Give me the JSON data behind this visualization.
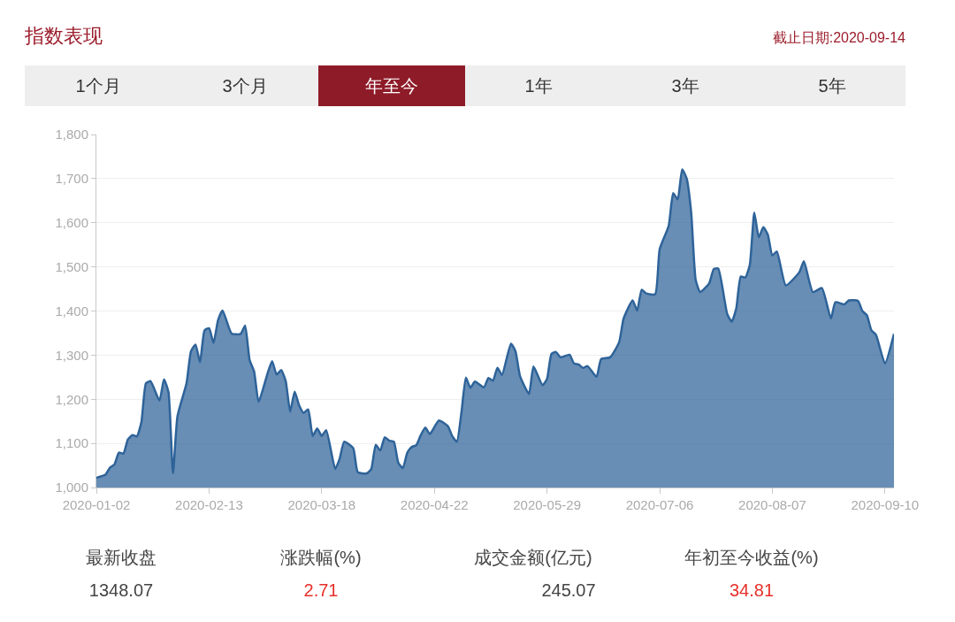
{
  "chart_data": {
    "type": "area",
    "title": "指数表现",
    "subtitle": "截止日期:2020-09-14",
    "annotations": [
      "1个月",
      "3个月",
      "年至今",
      "1年",
      "3年",
      "5年",
      "最新收盘",
      "1348.07",
      "涨跌幅(%)",
      "2.71",
      "成交金额(亿元)",
      "245.07",
      "年初至今收益(%)",
      "34.81"
    ],
    "categories": [
      "2020-01-02",
      null,
      null,
      null,
      null,
      null,
      null,
      null,
      null,
      null,
      null,
      null,
      null,
      null,
      null,
      null,
      null,
      null,
      null,
      null,
      null,
      null,
      null,
      null,
      null,
      "2020-02-13",
      null,
      null,
      null,
      null,
      null,
      null,
      null,
      null,
      null,
      null,
      null,
      null,
      null,
      null,
      null,
      null,
      null,
      null,
      null,
      null,
      null,
      null,
      null,
      null,
      "2020-03-18",
      null,
      null,
      null,
      null,
      null,
      null,
      null,
      null,
      null,
      null,
      null,
      null,
      null,
      null,
      null,
      null,
      null,
      null,
      null,
      null,
      null,
      null,
      null,
      null,
      "2020-04-22",
      null,
      null,
      null,
      null,
      null,
      null,
      null,
      null,
      null,
      null,
      null,
      null,
      null,
      null,
      null,
      null,
      null,
      null,
      null,
      null,
      null,
      null,
      null,
      null,
      "2020-05-29",
      null,
      null,
      null,
      null,
      null,
      null,
      null,
      null,
      null,
      null,
      null,
      null,
      null,
      null,
      null,
      null,
      null,
      null,
      null,
      null,
      null,
      null,
      null,
      null,
      "2020-07-06",
      null,
      null,
      null,
      null,
      null,
      null,
      null,
      null,
      null,
      null,
      null,
      null,
      null,
      null,
      null,
      null,
      null,
      null,
      null,
      null,
      null,
      null,
      null,
      null,
      "2020-08-07",
      null,
      null,
      null,
      null,
      null,
      null,
      null,
      null,
      null,
      null,
      null,
      null,
      null,
      null,
      null,
      null,
      null,
      null,
      null,
      null,
      null,
      null,
      null,
      null,
      "2020-09-10",
      null,
      null
    ],
    "series": [
      {
        "color": "#2e6399",
        "values": [
          1022,
          null,
          1029,
          1045,
          1052,
          1079,
          1077,
          1109,
          1119,
          1116,
          1149,
          1236,
          1241,
          null,
          1197,
          1245,
          1216,
          1032,
          1162,
          null,
          1236,
          1309,
          1324,
          1284,
          1356,
          1361,
          1328,
          1379,
          1401,
          null,
          1349,
          null,
          1348,
          1367,
          1289,
          1263,
          1194,
          null,
          1259,
          1286,
          1256,
          1266,
          1242,
          1172,
          1217,
          1186,
          1169,
          1177,
          1117,
          1134,
          1117,
          1130,
          null,
          1042,
          1066,
          1104,
          null,
          1089,
          1035,
          null,
          1032,
          1042,
          1097,
          1084,
          1114,
          1106,
          1104,
          1056,
          1044,
          1079,
          1092,
          1096,
          1119,
          1136,
          1121,
          null,
          1152,
          null,
          1139,
          1116,
          1104,
          1169,
          1249,
          1226,
          1240,
          null,
          1227,
          1248,
          1242,
          1271,
          1255,
          null,
          1326,
          1309,
          1253,
          null,
          1212,
          1274,
          null,
          1232,
          1246,
          1303,
          1307,
          1295,
          null,
          1301,
          1281,
          1279,
          1271,
          1275,
          null,
          1251,
          1291,
          null,
          1295,
          null,
          1329,
          1383,
          null,
          1424,
          1401,
          1448,
          1440,
          null,
          1438,
          1540,
          null,
          1593,
          1667,
          1653,
          1721,
          1700,
          1623,
          1470,
          1443,
          null,
          1463,
          1495,
          1496,
          null,
          1393,
          1376,
          1406,
          1478,
          1476,
          1504,
          1623,
          1567,
          1590,
          1573,
          1526,
          1535,
          null,
          1458,
          null,
          null,
          1488,
          1513,
          null,
          1443,
          null,
          1452,
          null,
          1383,
          1420,
          null,
          1415,
          1424,
          null,
          1423,
          1400,
          1390,
          1356,
          1346,
          null,
          1281,
          null,
          1348
        ]
      }
    ],
    "ylim": [
      1000,
      1800
    ],
    "yticks": [
      {
        "value": 1000,
        "label": "1,000"
      },
      {
        "value": 1100,
        "label": "1,100"
      },
      {
        "value": 1200,
        "label": "1,200"
      },
      {
        "value": 1300,
        "label": "1,300"
      },
      {
        "value": 1400,
        "label": "1,400"
      },
      {
        "value": 1500,
        "label": "1,500"
      },
      {
        "value": 1600,
        "label": "1,600"
      },
      {
        "value": 1700,
        "label": "1,700"
      },
      {
        "value": 1800,
        "label": "1,800"
      }
    ],
    "grid": "y"
  }
}
